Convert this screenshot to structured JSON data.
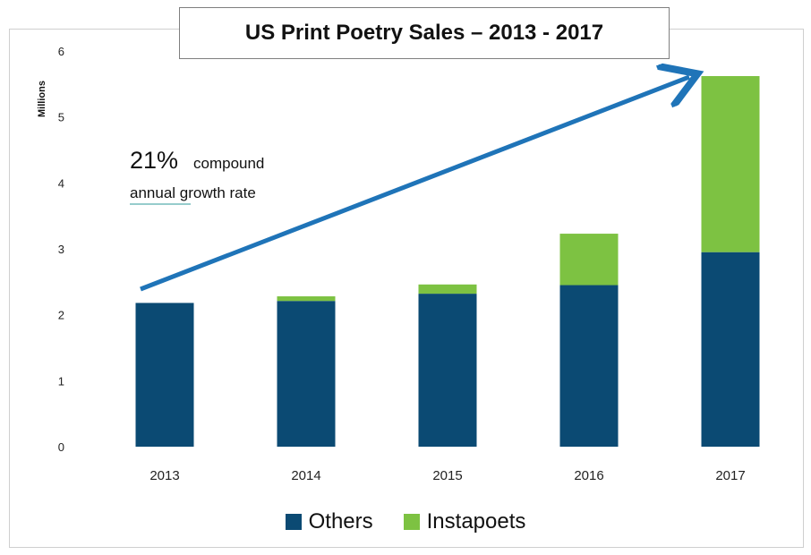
{
  "colors": {
    "others": "#0b4a73",
    "instapoets": "#7dc242",
    "arrow": "#1f74b8"
  },
  "chart_data": {
    "type": "bar",
    "stacked": true,
    "title": "US Print Poetry Sales – 2013 - 2017",
    "ylabel": "Millions",
    "xlabel": "",
    "ylim": [
      0,
      6
    ],
    "yticks": [
      "0",
      "1",
      "2",
      "3",
      "4",
      "5",
      "6"
    ],
    "categories": [
      "2013",
      "2014",
      "2015",
      "2016",
      "2017"
    ],
    "series": [
      {
        "name": "Others",
        "values": [
          2.18,
          2.21,
          2.32,
          2.45,
          2.95
        ]
      },
      {
        "name": "Instapoets",
        "values": [
          0.0,
          0.07,
          0.14,
          0.78,
          2.67
        ]
      }
    ],
    "legend_position": "bottom",
    "grid": false,
    "annotation": {
      "big": "21%",
      "small_line1": "compound",
      "small_line2": "annual growth rate"
    }
  }
}
